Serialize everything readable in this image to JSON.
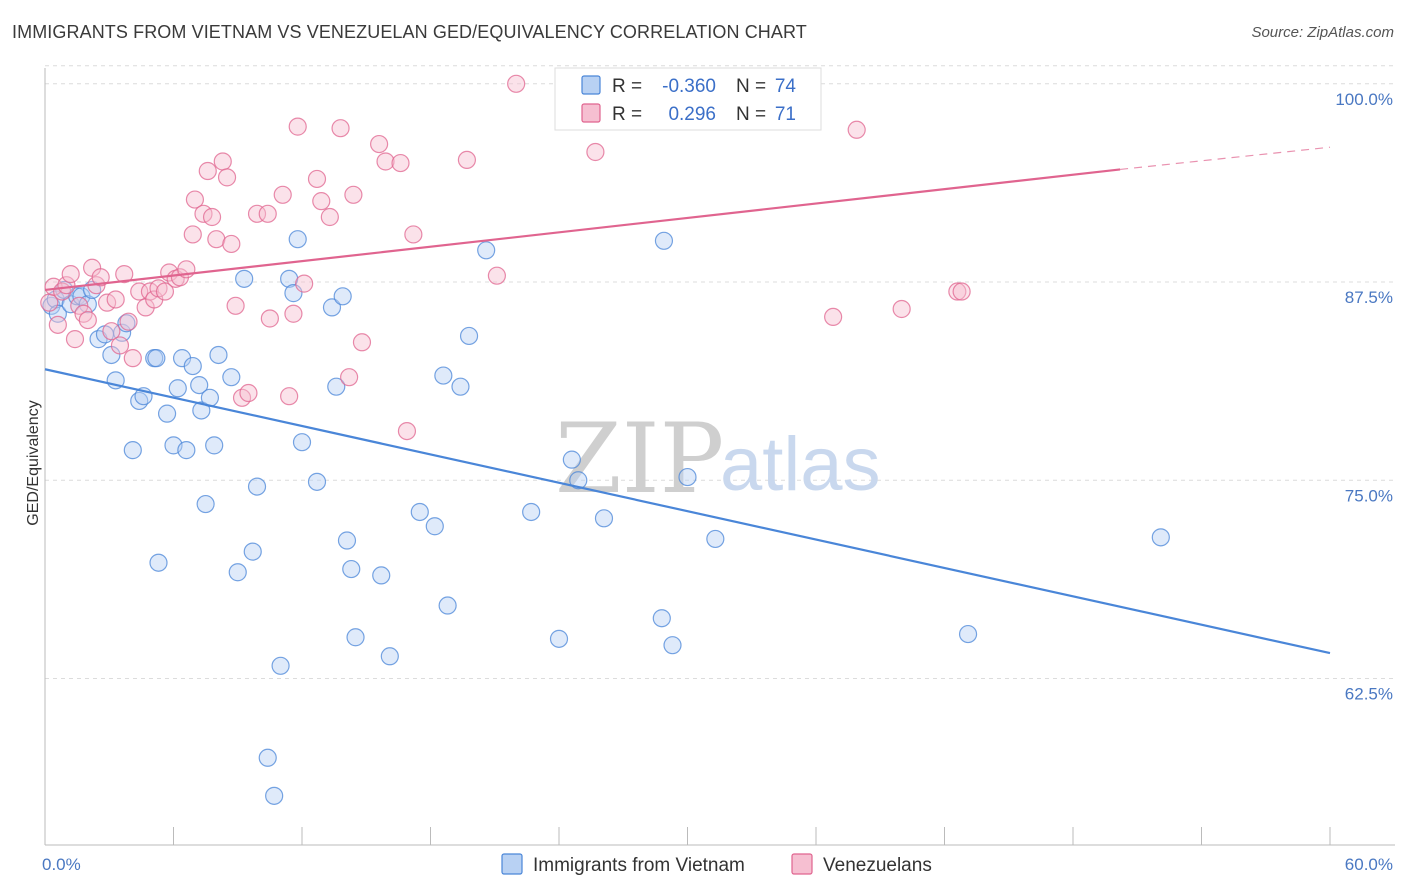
{
  "header": {
    "title": "IMMIGRANTS FROM VIETNAM VS VENEZUELAN GED/EQUIVALENCY CORRELATION CHART",
    "source": "Source: ZipAtlas.com"
  },
  "watermark": {
    "zip": "ZIP",
    "atlas": "atlas"
  },
  "colors": {
    "blue": "#4a86d8",
    "blue_fill": "#b8d1f3",
    "pink": "#e0648f",
    "pink_fill": "#f6bfd1",
    "axis_text": "#4a78c2"
  },
  "chart_data": {
    "type": "scatter",
    "title": "IMMIGRANTS FROM VIETNAM VS VENEZUELAN GED/EQUIVALENCY CORRELATION CHART",
    "ylabel": "GED/Equivalency",
    "xlim": [
      0,
      60
    ],
    "ylim": [
      52,
      101.5
    ],
    "x_ticks": [
      0,
      60
    ],
    "x_tick_labels": [
      "0.0%",
      "60.0%"
    ],
    "y_ticks": [
      62.5,
      75.0,
      87.5,
      100.0
    ],
    "y_tick_labels": [
      "62.5%",
      "75.0%",
      "87.5%",
      "100.0%"
    ],
    "grid": "horizontal dashed",
    "legend": {
      "placement": "top-center",
      "rows": [
        {
          "r_label": "R =",
          "r_value": "-0.360",
          "n_label": "N =",
          "n_value": "74"
        },
        {
          "r_label": "R =",
          "r_value": "0.296",
          "n_label": "N =",
          "n_value": "71"
        }
      ]
    },
    "series": [
      {
        "name": "Immigrants from Vietnam",
        "color": "#4a86d8",
        "trend": {
          "x": [
            0,
            60
          ],
          "y": [
            82.0,
            64.1
          ],
          "dashed_from": null
        },
        "points": [
          [
            0.3,
            86.0
          ],
          [
            0.5,
            86.4
          ],
          [
            0.6,
            85.5
          ],
          [
            0.9,
            87.0
          ],
          [
            1.2,
            86.1
          ],
          [
            1.5,
            86.6
          ],
          [
            1.7,
            86.6
          ],
          [
            2.0,
            86.1
          ],
          [
            2.2,
            87.0
          ],
          [
            2.5,
            83.9
          ],
          [
            2.8,
            84.2
          ],
          [
            3.1,
            82.9
          ],
          [
            3.3,
            81.3
          ],
          [
            3.6,
            84.3
          ],
          [
            3.8,
            84.9
          ],
          [
            4.1,
            76.9
          ],
          [
            4.4,
            80.0
          ],
          [
            4.6,
            80.3
          ],
          [
            5.1,
            82.7
          ],
          [
            5.2,
            82.7
          ],
          [
            5.3,
            69.8
          ],
          [
            5.7,
            79.2
          ],
          [
            6.0,
            77.2
          ],
          [
            6.2,
            80.8
          ],
          [
            6.4,
            82.7
          ],
          [
            6.6,
            76.9
          ],
          [
            6.9,
            82.2
          ],
          [
            7.2,
            81.0
          ],
          [
            7.3,
            79.4
          ],
          [
            7.5,
            73.5
          ],
          [
            7.7,
            80.2
          ],
          [
            7.9,
            77.2
          ],
          [
            8.1,
            82.9
          ],
          [
            8.7,
            81.5
          ],
          [
            9.0,
            69.2
          ],
          [
            9.3,
            87.7
          ],
          [
            9.7,
            70.5
          ],
          [
            9.9,
            74.6
          ],
          [
            10.4,
            57.5
          ],
          [
            10.7,
            55.1
          ],
          [
            11.0,
            63.3
          ],
          [
            11.4,
            87.7
          ],
          [
            11.6,
            86.8
          ],
          [
            11.8,
            90.2
          ],
          [
            12.0,
            77.4
          ],
          [
            12.7,
            74.9
          ],
          [
            13.4,
            85.9
          ],
          [
            13.6,
            80.9
          ],
          [
            13.9,
            86.6
          ],
          [
            14.1,
            71.2
          ],
          [
            14.3,
            69.4
          ],
          [
            14.5,
            65.1
          ],
          [
            15.7,
            69.0
          ],
          [
            16.1,
            63.9
          ],
          [
            17.5,
            73.0
          ],
          [
            18.2,
            72.1
          ],
          [
            18.6,
            81.6
          ],
          [
            18.8,
            67.1
          ],
          [
            19.4,
            80.9
          ],
          [
            19.8,
            84.1
          ],
          [
            20.6,
            89.5
          ],
          [
            22.7,
            73.0
          ],
          [
            24.0,
            65.0
          ],
          [
            24.6,
            76.3
          ],
          [
            24.9,
            75.0
          ],
          [
            26.1,
            72.6
          ],
          [
            28.0,
            100.0
          ],
          [
            28.8,
            66.3
          ],
          [
            28.9,
            90.1
          ],
          [
            29.3,
            64.6
          ],
          [
            30.0,
            75.2
          ],
          [
            31.3,
            71.3
          ],
          [
            43.1,
            65.3
          ],
          [
            52.1,
            71.4
          ]
        ]
      },
      {
        "name": "Venezuelans",
        "color": "#e0648f",
        "trend": {
          "x": [
            0,
            50.2
          ],
          "y": [
            87.0,
            94.6
          ],
          "dashed_to": [
            60,
            96.0
          ]
        },
        "points": [
          [
            0.2,
            86.2
          ],
          [
            0.4,
            87.2
          ],
          [
            0.6,
            84.8
          ],
          [
            0.8,
            86.9
          ],
          [
            1.0,
            87.3
          ],
          [
            1.2,
            88.0
          ],
          [
            1.4,
            83.9
          ],
          [
            1.6,
            86.0
          ],
          [
            1.8,
            85.5
          ],
          [
            2.0,
            85.1
          ],
          [
            2.2,
            88.4
          ],
          [
            2.4,
            87.3
          ],
          [
            2.6,
            87.8
          ],
          [
            2.9,
            86.2
          ],
          [
            3.1,
            84.4
          ],
          [
            3.3,
            86.4
          ],
          [
            3.5,
            83.5
          ],
          [
            3.7,
            88.0
          ],
          [
            3.9,
            85.0
          ],
          [
            4.1,
            82.7
          ],
          [
            4.4,
            86.9
          ],
          [
            4.7,
            85.9
          ],
          [
            4.9,
            86.9
          ],
          [
            5.1,
            86.4
          ],
          [
            5.3,
            87.1
          ],
          [
            5.6,
            86.9
          ],
          [
            5.8,
            88.1
          ],
          [
            6.1,
            87.7
          ],
          [
            6.3,
            87.8
          ],
          [
            6.6,
            88.3
          ],
          [
            6.9,
            90.5
          ],
          [
            7.0,
            92.7
          ],
          [
            7.4,
            91.8
          ],
          [
            7.6,
            94.5
          ],
          [
            7.8,
            91.6
          ],
          [
            8.0,
            90.2
          ],
          [
            8.3,
            95.1
          ],
          [
            8.5,
            94.1
          ],
          [
            8.7,
            89.9
          ],
          [
            8.9,
            86.0
          ],
          [
            9.2,
            80.2
          ],
          [
            9.5,
            80.5
          ],
          [
            9.9,
            91.8
          ],
          [
            10.4,
            91.8
          ],
          [
            10.5,
            85.2
          ],
          [
            11.1,
            93.0
          ],
          [
            11.4,
            80.3
          ],
          [
            11.6,
            85.5
          ],
          [
            11.8,
            97.3
          ],
          [
            12.1,
            87.4
          ],
          [
            12.7,
            94.0
          ],
          [
            12.9,
            92.6
          ],
          [
            13.3,
            91.6
          ],
          [
            13.8,
            97.2
          ],
          [
            14.2,
            81.5
          ],
          [
            14.4,
            93.0
          ],
          [
            14.8,
            83.7
          ],
          [
            15.6,
            96.2
          ],
          [
            15.9,
            95.1
          ],
          [
            16.6,
            95.0
          ],
          [
            16.9,
            78.1
          ],
          [
            17.2,
            90.5
          ],
          [
            19.7,
            95.2
          ],
          [
            21.1,
            87.9
          ],
          [
            22.0,
            100.0
          ],
          [
            25.7,
            95.7
          ],
          [
            36.8,
            85.3
          ],
          [
            37.9,
            97.1
          ],
          [
            40.0,
            85.8
          ],
          [
            42.6,
            86.9
          ],
          [
            42.8,
            86.9
          ]
        ]
      }
    ]
  }
}
